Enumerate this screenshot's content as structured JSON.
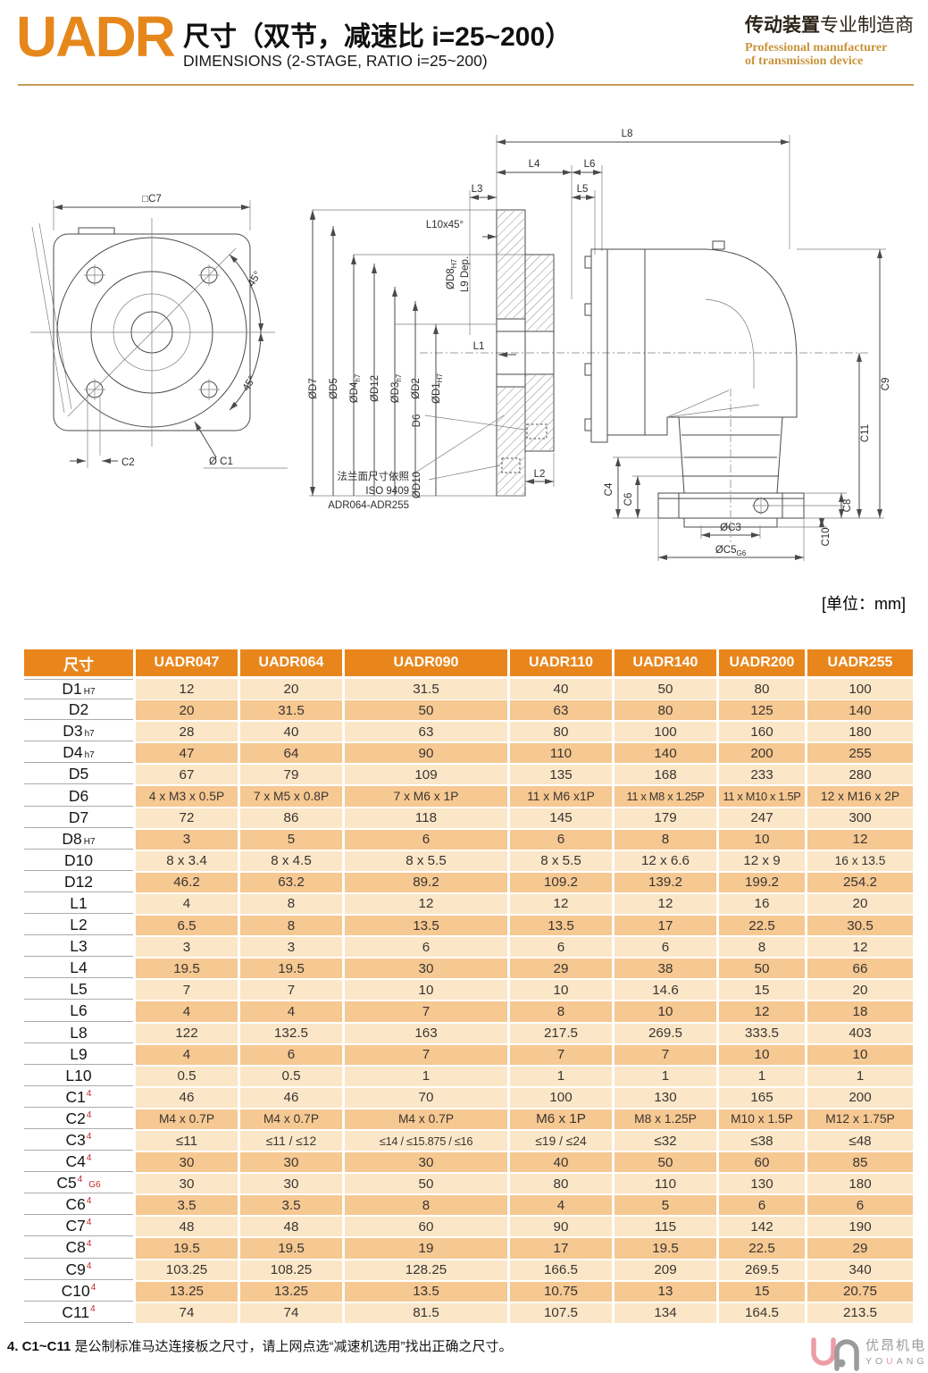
{
  "header": {
    "product": "UADR",
    "title_zh": "尺寸（双节，减速比 i=25~200）",
    "title_en": "DIMENSIONS (2-STAGE, RATIO i=25~200)",
    "brand_zh_bold": "传动装置",
    "brand_zh_rest": "专业制造商",
    "brand_en_line1": "Professional manufacturer",
    "brand_en_line2": "of transmission device"
  },
  "drawing": {
    "unit_note": "[单位：mm]",
    "front": {
      "c7": "□C7",
      "angle_top": "45°",
      "angle_bottom": "45°",
      "c2": "C2",
      "c1": "Ø C1"
    },
    "section": {
      "l8": "L8",
      "l4": "L4",
      "l6": "L6",
      "l3": "L3",
      "l5": "L5",
      "l10": "L10x45°",
      "d7": "ØD7",
      "d5": "ØD5",
      "d4": "ØD4",
      "d4_sub": "h7",
      "d12": "ØD12",
      "d3": "ØD3",
      "d3_sub": "h7",
      "d2": "ØD2",
      "d1": "ØD1",
      "d1_sub": "H7",
      "d8": "ØD8",
      "d8_sub": "H7",
      "l9": "L9 Dep.",
      "d6": "D6",
      "d10": "ØD10",
      "l1": "L1",
      "l2": "L2",
      "flange_note_1": "法兰面尺寸依照",
      "flange_note_2": "ISO 9409",
      "flange_note_3": "ADR064-ADR255"
    },
    "side": {
      "c9": "C9",
      "c11": "C11",
      "c4": "C4",
      "c6": "C6",
      "c8": "C8",
      "c10": "C10",
      "c3": "ØC3",
      "c5": "ØC5",
      "c5_sub": "G6"
    }
  },
  "table": {
    "columns": [
      "尺寸",
      "UADR047",
      "UADR064",
      "UADR090",
      "UADR110",
      "UADR140",
      "UADR200",
      "UADR255"
    ],
    "rows": [
      {
        "label": "D1",
        "sub": "H7",
        "values": [
          "12",
          "20",
          "31.5",
          "40",
          "50",
          "80",
          "100"
        ]
      },
      {
        "label": "D2",
        "values": [
          "20",
          "31.5",
          "50",
          "63",
          "80",
          "125",
          "140"
        ]
      },
      {
        "label": "D3",
        "sub": "h7",
        "values": [
          "28",
          "40",
          "63",
          "80",
          "100",
          "160",
          "180"
        ]
      },
      {
        "label": "D4",
        "sub": "h7",
        "values": [
          "47",
          "64",
          "90",
          "110",
          "140",
          "200",
          "255"
        ]
      },
      {
        "label": "D5",
        "values": [
          "67",
          "79",
          "109",
          "135",
          "168",
          "233",
          "280"
        ]
      },
      {
        "label": "D6",
        "values": [
          "4 x M3 x 0.5P",
          "7 x M5 x 0.8P",
          "7 x M6 x 1P",
          "11 x M6 x1P",
          "11 x M8 x 1.25P",
          "11 x M10 x 1.5P",
          "12 x M16 x 2P"
        ]
      },
      {
        "label": "D7",
        "values": [
          "72",
          "86",
          "118",
          "145",
          "179",
          "247",
          "300"
        ]
      },
      {
        "label": "D8",
        "sub": "H7",
        "values": [
          "3",
          "5",
          "6",
          "6",
          "8",
          "10",
          "12"
        ]
      },
      {
        "label": "D10",
        "values": [
          "8 x 3.4",
          "8 x 4.5",
          "8 x 5.5",
          "8 x 5.5",
          "12 x 6.6",
          "12 x 9",
          "16 x 13.5"
        ]
      },
      {
        "label": "D12",
        "values": [
          "46.2",
          "63.2",
          "89.2",
          "109.2",
          "139.2",
          "199.2",
          "254.2"
        ]
      },
      {
        "label": "L1",
        "values": [
          "4",
          "8",
          "12",
          "12",
          "12",
          "16",
          "20"
        ]
      },
      {
        "label": "L2",
        "values": [
          "6.5",
          "8",
          "13.5",
          "13.5",
          "17",
          "22.5",
          "30.5"
        ]
      },
      {
        "label": "L3",
        "values": [
          "3",
          "3",
          "6",
          "6",
          "6",
          "8",
          "12"
        ]
      },
      {
        "label": "L4",
        "values": [
          "19.5",
          "19.5",
          "30",
          "29",
          "38",
          "50",
          "66"
        ]
      },
      {
        "label": "L5",
        "values": [
          "7",
          "7",
          "10",
          "10",
          "14.6",
          "15",
          "20"
        ]
      },
      {
        "label": "L6",
        "values": [
          "4",
          "4",
          "7",
          "8",
          "10",
          "12",
          "18"
        ]
      },
      {
        "label": "L8",
        "values": [
          "122",
          "132.5",
          "163",
          "217.5",
          "269.5",
          "333.5",
          "403"
        ]
      },
      {
        "label": "L9",
        "values": [
          "4",
          "6",
          "7",
          "7",
          "7",
          "10",
          "10"
        ]
      },
      {
        "label": "L10",
        "values": [
          "0.5",
          "0.5",
          "1",
          "1",
          "1",
          "1",
          "1"
        ]
      },
      {
        "label": "C1",
        "sup": "4",
        "values": [
          "46",
          "46",
          "70",
          "100",
          "130",
          "165",
          "200"
        ]
      },
      {
        "label": "C2",
        "sup": "4",
        "values": [
          "M4 x 0.7P",
          "M4 x 0.7P",
          "M4 x 0.7P",
          "M6 x 1P",
          "M8 x 1.25P",
          "M10 x 1.5P",
          "M12 x 1.75P"
        ]
      },
      {
        "label": "C3",
        "sup": "4",
        "values": [
          "≤11",
          "≤11 / ≤12",
          "≤14 / ≤15.875 / ≤16",
          "≤19 / ≤24",
          "≤32",
          "≤38",
          "≤48"
        ]
      },
      {
        "label": "C4",
        "sup": "4",
        "values": [
          "30",
          "30",
          "30",
          "40",
          "50",
          "60",
          "85"
        ]
      },
      {
        "label": "C5",
        "sup": "4",
        "note": "G6",
        "values": [
          "30",
          "30",
          "50",
          "80",
          "110",
          "130",
          "180"
        ]
      },
      {
        "label": "C6",
        "sup": "4",
        "values": [
          "3.5",
          "3.5",
          "8",
          "4",
          "5",
          "6",
          "6"
        ]
      },
      {
        "label": "C7",
        "sup": "4",
        "values": [
          "48",
          "48",
          "60",
          "90",
          "115",
          "142",
          "190"
        ]
      },
      {
        "label": "C8",
        "sup": "4",
        "values": [
          "19.5",
          "19.5",
          "19",
          "17",
          "19.5",
          "22.5",
          "29"
        ]
      },
      {
        "label": "C9",
        "sup": "4",
        "values": [
          "103.25",
          "108.25",
          "128.25",
          "166.5",
          "209",
          "269.5",
          "340"
        ]
      },
      {
        "label": "C10",
        "sup": "4",
        "values": [
          "13.25",
          "13.25",
          "13.5",
          "10.75",
          "13",
          "15",
          "20.75"
        ]
      },
      {
        "label": "C11",
        "sup": "4",
        "values": [
          "74",
          "74",
          "81.5",
          "107.5",
          "134",
          "164.5",
          "213.5"
        ]
      }
    ]
  },
  "footnote": {
    "bold": "4. C1~C11",
    "rest": " 是公制标准马达连接板之尺寸，请上网点选“减速机选用”找出正确之尺寸。"
  },
  "logo": {
    "zh": "优昂机电",
    "en_pre": "YO",
    "en_mid": "U",
    "en_post": "ANG"
  },
  "colors": {
    "accent_orange": "#E8861C",
    "row_light": "#FBE6C8",
    "row_dark": "#F6C892",
    "red_mark": "#C1272D",
    "brand_gold": "#C8943A",
    "logo_pink": "#ED9DA6",
    "logo_gray": "#9B9B9B"
  }
}
